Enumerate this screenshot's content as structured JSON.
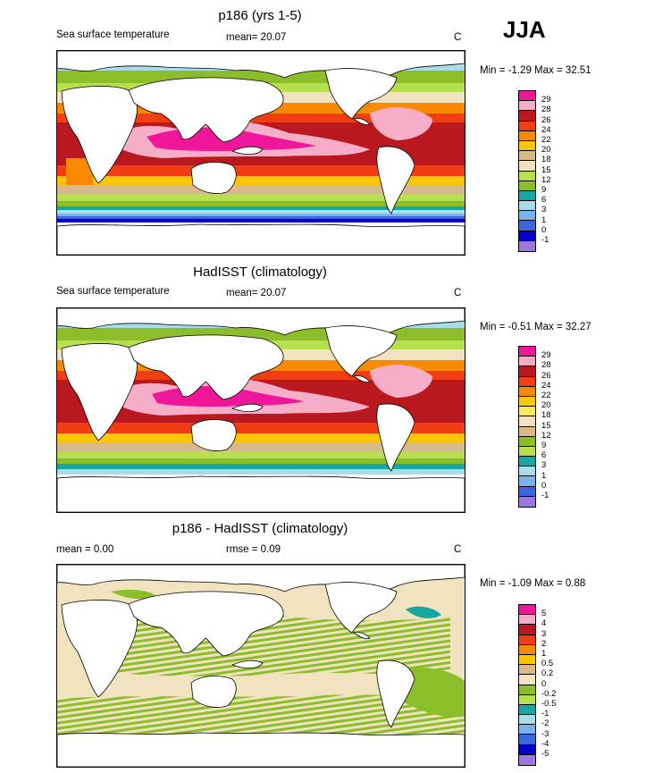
{
  "season": "JJA",
  "palette": {
    "magenta": "#f0169a",
    "pink": "#f6aec8",
    "darkred": "#b8181e",
    "orangered": "#f23c14",
    "orange": "#f98a00",
    "gold": "#fcc700",
    "yellow": "#fde95a",
    "tan": "#d8ba8a",
    "beige": "#f1e3c0",
    "green": "#8cbe2c",
    "lightgreen": "#b6e050",
    "teal": "#1aa6a0",
    "lightblue": "#a8dcea",
    "skyblue": "#7ab2f0",
    "blue": "#3a66e0",
    "navy": "#0000cc",
    "purple": "#9a78dc",
    "land": "#ffffff",
    "coast": "#000000"
  },
  "panels": [
    {
      "title": "p186 (yrs 1-5)",
      "left_label": "Sea surface temperature",
      "mean_text": "mean=  20.07",
      "rmse_text": "",
      "units": "C",
      "minmax": "Min =  -1.29 Max =  32.51",
      "colorbar": {
        "labels": [
          "29",
          "28",
          "26",
          "24",
          "22",
          "20",
          "18",
          "15",
          "12",
          "9",
          "6",
          "3",
          "1",
          "0",
          "-1"
        ],
        "colors": [
          "#f0169a",
          "#f6aec8",
          "#b8181e",
          "#f23c14",
          "#f98a00",
          "#fcc700",
          "#d8ba8a",
          "#f1e3c0",
          "#b6e050",
          "#8cbe2c",
          "#1aa6a0",
          "#a8dcea",
          "#7ab2f0",
          "#3a66e0",
          "#0000cc",
          "#9a78dc"
        ]
      }
    },
    {
      "title": "HadISST (climatology)",
      "left_label": "Sea surface temperature",
      "mean_text": "mean=  20.07",
      "rmse_text": "",
      "units": "C",
      "minmax": "Min =  -0.51 Max =  32.27",
      "colorbar": {
        "labels": [
          "29",
          "28",
          "26",
          "24",
          "22",
          "20",
          "18",
          "15",
          "12",
          "9",
          "6",
          "3",
          "1",
          "0",
          "-1"
        ],
        "colors": [
          "#f0169a",
          "#f6aec8",
          "#b8181e",
          "#f23c14",
          "#f98a00",
          "#fcc700",
          "#fde95a",
          "#f1e3c0",
          "#d8ba8a",
          "#8cbe2c",
          "#b6e050",
          "#1aa6a0",
          "#a8dcea",
          "#7ab2f0",
          "#3a66e0",
          "#9a78dc"
        ]
      }
    },
    {
      "title": "p186 - HadISST (climatology)",
      "left_label": "",
      "mean_text": "mean =   0.00",
      "rmse_text": "rmse =   0.09",
      "units": "C",
      "minmax": "Min =  -1.09 Max =   0.88",
      "colorbar": {
        "labels": [
          "5",
          "4",
          "3",
          "2",
          "1",
          "0.5",
          "0.2",
          "0",
          "-0.2",
          "-0.5",
          "-1",
          "-2",
          "-3",
          "-4",
          "-5"
        ],
        "colors": [
          "#f0169a",
          "#f6aec8",
          "#b8181e",
          "#f23c14",
          "#f98a00",
          "#fcc700",
          "#d8ba8a",
          "#f1e3c0",
          "#8cbe2c",
          "#b6e050",
          "#1aa6a0",
          "#a8dcea",
          "#7ab2f0",
          "#3a66e0",
          "#0000cc",
          "#9a78dc"
        ]
      }
    }
  ]
}
